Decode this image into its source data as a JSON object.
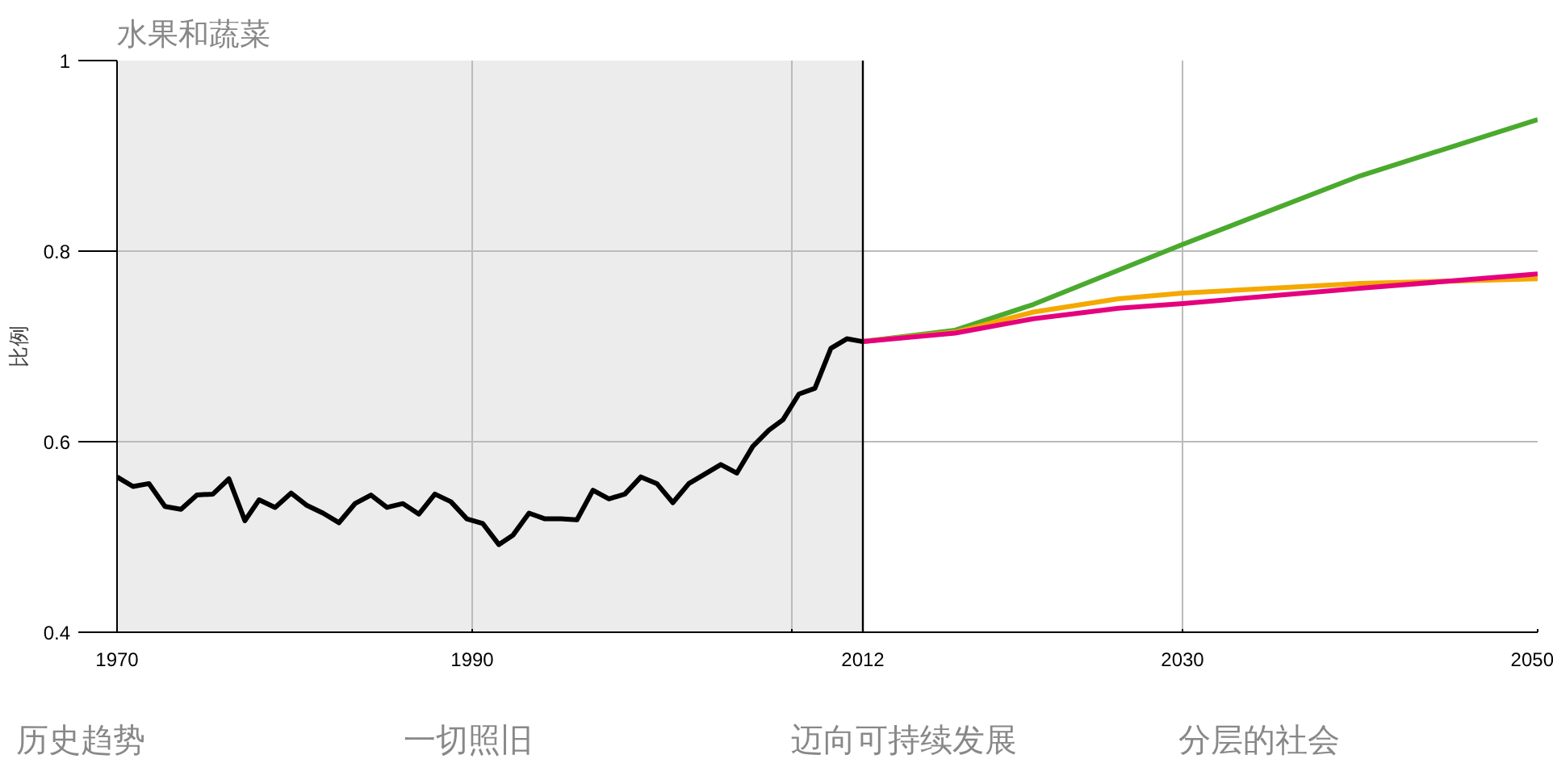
{
  "chart_data": {
    "type": "line",
    "title": "水果和蔬菜",
    "ylabel": "比例",
    "xlim": [
      1970,
      2050
    ],
    "ylim": [
      0.4,
      1
    ],
    "xticks": [
      1970,
      1990,
      {
        "value": 2008,
        "label": null
      },
      2012,
      2030,
      2050
    ],
    "yticks": [
      0.4,
      0.6,
      0.8,
      1
    ],
    "grid": true,
    "bands": [
      {
        "axis": "x",
        "from": 1970,
        "to": 2012,
        "color": "#ececec"
      }
    ],
    "ref_lines": [
      {
        "axis": "x",
        "value": 2012,
        "color": "#000000"
      }
    ],
    "series": [
      {
        "color": "#000000",
        "x": [
          1970.0,
          1970.9,
          1971.8,
          1972.7,
          1973.6,
          1974.5,
          1975.4,
          1976.3,
          1977.2,
          1978.0,
          1978.9,
          1979.8,
          1980.7,
          1981.6,
          1982.5,
          1983.4,
          1984.3,
          1985.2,
          1986.1,
          1987.0,
          1987.9,
          1988.8,
          1989.7,
          1990.6,
          1991.5,
          1992.3,
          1993.2,
          1994.1,
          1995.0,
          1995.9,
          1996.8,
          1997.7,
          1998.6,
          1999.5,
          2000.4,
          2001.3,
          2002.2,
          2003.1,
          2004.0,
          2004.9,
          2005.8,
          2006.7,
          2007.5,
          2008.4,
          2009.3,
          2010.2,
          2011.1,
          2012.0
        ],
        "values": [
          0.563,
          0.553,
          0.556,
          0.532,
          0.529,
          0.544,
          0.545,
          0.561,
          0.517,
          0.539,
          0.531,
          0.546,
          0.533,
          0.525,
          0.515,
          0.535,
          0.544,
          0.531,
          0.535,
          0.524,
          0.545,
          0.537,
          0.519,
          0.514,
          0.492,
          0.502,
          0.525,
          0.519,
          0.519,
          0.518,
          0.549,
          0.54,
          0.545,
          0.563,
          0.556,
          0.536,
          0.556,
          0.566,
          0.576,
          0.567,
          0.595,
          0.612,
          0.623,
          0.65,
          0.656,
          0.698,
          0.708,
          0.705
        ]
      },
      {
        "color": "#4aaa2e",
        "x": [
          2012,
          2017.2,
          2021.6,
          2030,
          2040,
          2050
        ],
        "values": [
          0.705,
          0.717,
          0.744,
          0.807,
          0.879,
          0.938
        ]
      },
      {
        "color": "#f5a800",
        "x": [
          2012,
          2017.2,
          2021.6,
          2026.4,
          2030,
          2040,
          2050
        ],
        "values": [
          0.705,
          0.715,
          0.736,
          0.75,
          0.756,
          0.766,
          0.771
        ]
      },
      {
        "color": "#e5007d",
        "x": [
          2012,
          2017.2,
          2021.6,
          2026.4,
          2030,
          2040,
          2050
        ],
        "values": [
          0.705,
          0.714,
          0.729,
          0.74,
          0.745,
          0.761,
          0.776
        ]
      }
    ],
    "annotations": [
      "历史趋势",
      "一切照旧",
      "迈向可持续发展",
      "分层的社会"
    ]
  }
}
